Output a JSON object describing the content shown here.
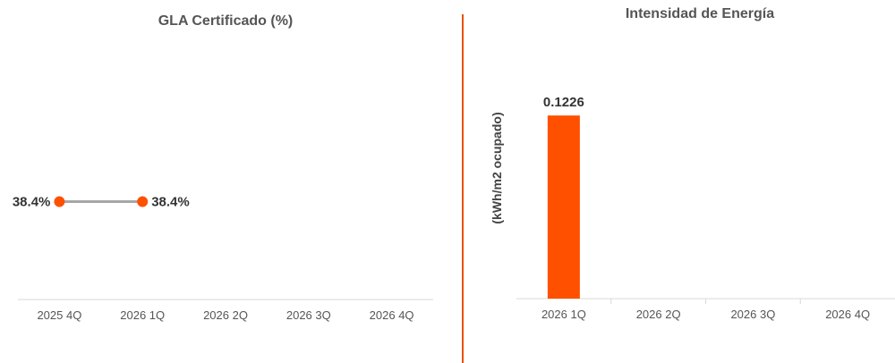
{
  "colors": {
    "accent": "#ff5000",
    "line": "#a6a6a6",
    "axis": "#d9d9d9",
    "divider": "#e8500a"
  },
  "chart_data": [
    {
      "type": "line",
      "title": "GLA Certificado (%)",
      "categories": [
        "2025 4Q",
        "2026 1Q",
        "2026 2Q",
        "2026 3Q",
        "2026 4Q"
      ],
      "series": [
        {
          "values": [
            38.4,
            38.4,
            null,
            null,
            null
          ]
        }
      ],
      "data_labels": [
        "38.4%",
        "38.4%"
      ],
      "ylim": [
        0,
        100
      ],
      "xlabel": "",
      "ylabel": "",
      "grid": false,
      "legend": "none"
    },
    {
      "type": "bar",
      "title": "Intensidad de Energía",
      "categories": [
        "2026 1Q",
        "2026 2Q",
        "2026 3Q",
        "2026 4Q"
      ],
      "series": [
        {
          "values": [
            0.1226,
            null,
            null,
            null
          ]
        }
      ],
      "data_labels": [
        "0.1226"
      ],
      "ylim": [
        0,
        0.17
      ],
      "xlabel": "",
      "ylabel": "(kWh/m2 ocupado)",
      "grid": false,
      "legend": "none"
    }
  ]
}
